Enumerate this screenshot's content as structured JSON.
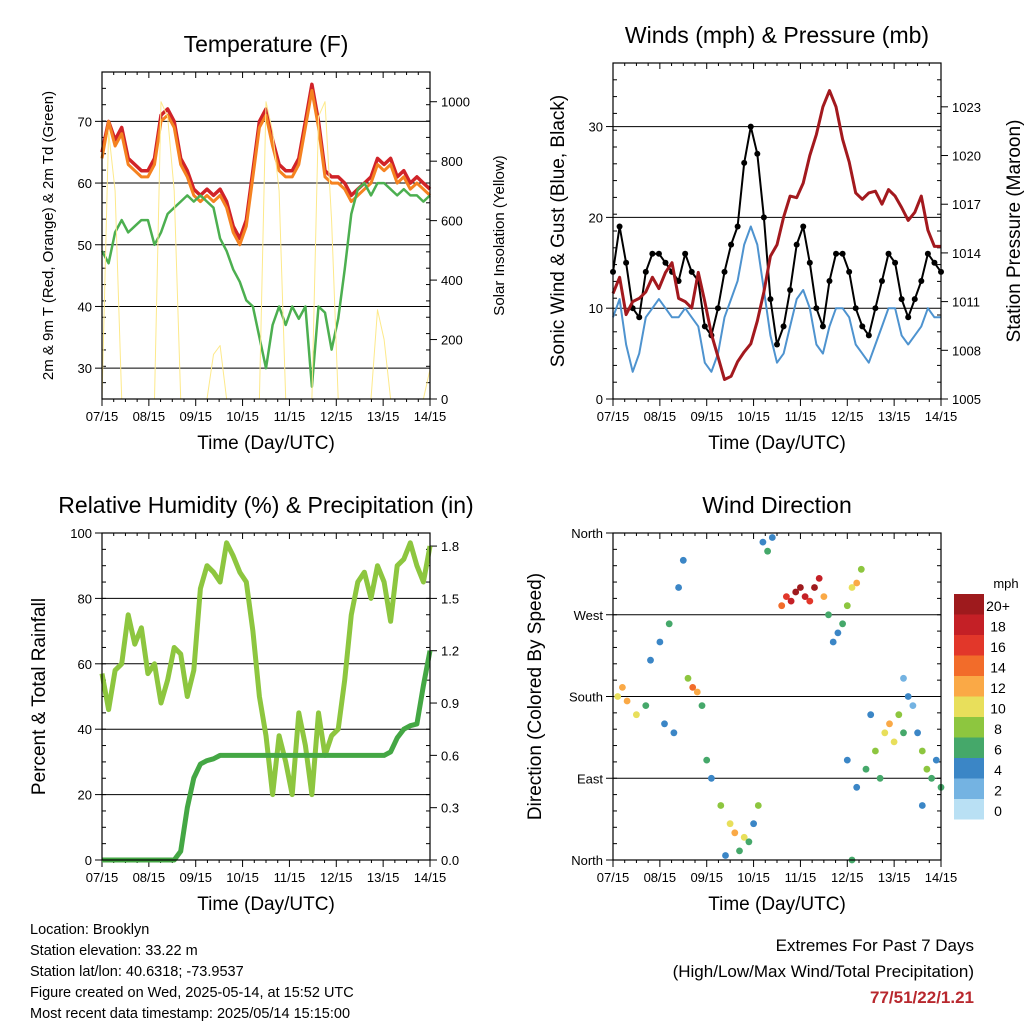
{
  "chart_data": [
    {
      "type": "line",
      "title": "Temperature (F)",
      "xlabel": "Time (Day/UTC)",
      "ylabel": "2m & 9m T (Red, Orange) & 2m Td (Green)",
      "ylabel_right": "Solar Insolation (Yellow)",
      "x_ticks": [
        "07/15",
        "08/15",
        "09/15",
        "10/15",
        "11/15",
        "12/15",
        "13/15",
        "14/15"
      ],
      "ylim": [
        25,
        78
      ],
      "y_ticks": [
        30,
        40,
        50,
        60,
        70
      ],
      "y2lim": [
        0,
        1100
      ],
      "y2_ticks": [
        0,
        200,
        400,
        600,
        800,
        1000
      ],
      "grid": true,
      "series": [
        {
          "color": "#d12328",
          "values": [
            65,
            70,
            67,
            69,
            64,
            63,
            62,
            62,
            64,
            71,
            72,
            70,
            64,
            62,
            59,
            58,
            59,
            58,
            59,
            57,
            53,
            51,
            54,
            62,
            70,
            72,
            67,
            63,
            62,
            62,
            64,
            70,
            76,
            70,
            62,
            61,
            61,
            60,
            58,
            59,
            60,
            61,
            64,
            63,
            64,
            61,
            62,
            60,
            61,
            60,
            59
          ]
        },
        {
          "color": "#f58220",
          "values": [
            64,
            70,
            66,
            68,
            63,
            62,
            61,
            61,
            63,
            70,
            71,
            69,
            63,
            61,
            58,
            57,
            58,
            57,
            58,
            56,
            52,
            50,
            53,
            61,
            69,
            71,
            66,
            62,
            61,
            61,
            63,
            69,
            75,
            69,
            61,
            60,
            60,
            59,
            57,
            58,
            59,
            60,
            63,
            62,
            63,
            60,
            61,
            59,
            60,
            59,
            58
          ]
        },
        {
          "color": "#4caf50",
          "values": [
            49,
            47,
            52,
            54,
            52,
            53,
            54,
            54,
            50,
            52,
            55,
            56,
            57,
            58,
            57,
            58,
            57,
            56,
            51,
            49,
            46,
            44,
            41,
            40,
            35,
            30,
            37,
            40,
            37,
            40,
            38,
            40,
            27,
            40,
            39,
            33,
            38,
            46,
            55,
            59,
            60,
            58,
            60,
            60,
            59,
            58,
            59,
            58,
            58,
            57,
            58
          ]
        },
        {
          "color": "#fde98a",
          "values": [
            0,
            900,
            700,
            0,
            0,
            0,
            0,
            0,
            0,
            1000,
            950,
            700,
            0,
            0,
            0,
            0,
            0,
            150,
            180,
            0,
            0,
            0,
            0,
            0,
            0,
            1000,
            900,
            700,
            0,
            0,
            0,
            0,
            0,
            950,
            1000,
            600,
            0,
            0,
            0,
            0,
            0,
            0,
            300,
            200,
            0,
            0,
            0,
            0,
            0,
            0,
            100
          ]
        }
      ]
    },
    {
      "type": "line",
      "title": "Winds (mph) & Pressure (mb)",
      "xlabel": "Time (Day/UTC)",
      "ylabel": "Sonic Wind & Gust (Blue, Black)",
      "ylabel_right": "Station Pressure (Maroon)",
      "x_ticks": [
        "07/15",
        "08/15",
        "09/15",
        "10/15",
        "11/15",
        "12/15",
        "13/15",
        "14/15"
      ],
      "ylim": [
        0,
        37
      ],
      "y_ticks": [
        0,
        10,
        20,
        30
      ],
      "y2lim": [
        1005,
        1025.7
      ],
      "y2_ticks": [
        1005,
        1008,
        1011,
        1014,
        1017,
        1020,
        1023
      ],
      "grid": true,
      "series": [
        {
          "color": "#000000",
          "values": [
            14,
            19,
            15,
            10,
            9,
            14,
            16,
            16,
            15,
            14,
            13,
            16,
            14,
            13,
            8,
            7,
            10,
            14,
            17,
            19,
            26,
            30,
            27,
            20,
            11,
            6,
            8,
            12,
            17,
            19,
            15,
            10,
            8,
            13,
            16,
            16,
            14,
            10,
            8,
            7,
            10,
            13,
            16,
            15,
            11,
            9,
            11,
            13,
            16,
            15,
            14
          ]
        },
        {
          "color": "#4e93cf",
          "values": [
            9,
            11,
            6,
            3,
            5,
            9,
            10,
            11,
            10,
            9,
            9,
            10,
            9,
            8,
            4,
            3,
            5,
            9,
            11,
            13,
            17,
            19,
            17,
            12,
            7,
            4,
            5,
            8,
            11,
            12,
            10,
            6,
            5,
            8,
            10,
            10,
            9,
            6,
            5,
            4,
            6,
            8,
            10,
            10,
            7,
            6,
            7,
            8,
            10,
            9,
            9
          ]
        },
        {
          "color": "#a3191e",
          "values": [
            1011.5,
            1012.5,
            1010.2,
            1011,
            1011.2,
            1011.6,
            1012.5,
            1011.8,
            1012.8,
            1013.4,
            1011.2,
            1011,
            1010.6,
            1012.8,
            1011,
            1009,
            1007.6,
            1006.2,
            1006.4,
            1007.3,
            1007.9,
            1008.4,
            1009.8,
            1011.6,
            1013.8,
            1014.5,
            1016.2,
            1017.5,
            1017.4,
            1018.3,
            1020,
            1021.3,
            1023,
            1024,
            1023,
            1021,
            1019.6,
            1017.7,
            1017.3,
            1017.7,
            1017.8,
            1017,
            1017.9,
            1017.5,
            1016.8,
            1016,
            1016.5,
            1017.5,
            1015.4,
            1014.4,
            1014.4
          ]
        }
      ]
    },
    {
      "type": "line",
      "title": "Relative Humidity (%) & Precipitation (in)",
      "xlabel": "Time (Day/UTC)",
      "ylabel": "Percent & Total Rainfall",
      "x_ticks": [
        "07/15",
        "08/15",
        "09/15",
        "10/15",
        "11/15",
        "12/15",
        "13/15",
        "14/15"
      ],
      "ylim": [
        0,
        100
      ],
      "y_ticks": [
        0,
        20,
        40,
        60,
        80,
        100
      ],
      "y2lim": [
        0,
        1.875
      ],
      "y2_ticks": [
        "0.0",
        "0.3",
        "0.6",
        "0.9",
        "1.2",
        "1.5",
        "1.8"
      ],
      "grid": true,
      "series": [
        {
          "color": "#8dc63f",
          "values": [
            57,
            46,
            58,
            60,
            75,
            66,
            71,
            57,
            60,
            48,
            55,
            65,
            63,
            50,
            58,
            83,
            90,
            88,
            85,
            97,
            93,
            88,
            85,
            70,
            50,
            38,
            20,
            38,
            30,
            20,
            45,
            35,
            20,
            45,
            32,
            38,
            40,
            55,
            75,
            85,
            88,
            80,
            90,
            85,
            73,
            90,
            92,
            97,
            90,
            85,
            96
          ]
        },
        {
          "color": "#44a744",
          "values": [
            0,
            0,
            0,
            0,
            0,
            0,
            0,
            0,
            0,
            0,
            0,
            0,
            0.05,
            0.3,
            0.47,
            0.55,
            0.57,
            0.58,
            0.6,
            0.6,
            0.6,
            0.6,
            0.6,
            0.6,
            0.6,
            0.6,
            0.6,
            0.6,
            0.6,
            0.6,
            0.6,
            0.6,
            0.6,
            0.6,
            0.6,
            0.6,
            0.6,
            0.6,
            0.6,
            0.6,
            0.6,
            0.6,
            0.6,
            0.6,
            0.62,
            0.7,
            0.75,
            0.77,
            0.78,
            1.0,
            1.2
          ]
        }
      ]
    },
    {
      "type": "scatter",
      "title": "Wind Direction",
      "xlabel": "Time (Day/UTC)",
      "ylabel": "Direction (Colored By Speed)",
      "x_ticks": [
        "07/15",
        "08/15",
        "09/15",
        "10/15",
        "11/15",
        "12/15",
        "13/15",
        "14/15"
      ],
      "ylim": [
        0,
        360
      ],
      "y_tick_labels": [
        "North",
        "East",
        "South",
        "West",
        "North"
      ],
      "grid": true,
      "legend": {
        "title": "mph",
        "placement": "right",
        "labels": [
          "20+",
          "18",
          "16",
          "14",
          "12",
          "10",
          "8",
          "6",
          "4",
          "2",
          "0"
        ],
        "colors": [
          "#9e1a1d",
          "#c42026",
          "#e2372a",
          "#f26c2a",
          "#faa946",
          "#e8df5b",
          "#8dc63f",
          "#45a86a",
          "#3b86c6",
          "#74b3e2",
          "#b9e0f4"
        ]
      },
      "series": [
        {
          "values": [
            [
              0.1,
              180,
              10
            ],
            [
              0.2,
              190,
              12
            ],
            [
              0.3,
              175,
              11
            ],
            [
              0.5,
              160,
              9
            ],
            [
              0.7,
              170,
              6
            ],
            [
              0.8,
              220,
              4
            ],
            [
              1,
              240,
              3
            ],
            [
              1.2,
              260,
              5
            ],
            [
              1.4,
              300,
              3
            ],
            [
              1.5,
              330,
              4
            ],
            [
              1.1,
              150,
              4
            ],
            [
              1.3,
              140,
              3
            ],
            [
              1.6,
              200,
              8
            ],
            [
              1.7,
              190,
              14
            ],
            [
              1.8,
              185,
              12
            ],
            [
              1.9,
              170,
              6
            ],
            [
              2,
              110,
              5
            ],
            [
              2.1,
              90,
              4
            ],
            [
              2.3,
              60,
              8
            ],
            [
              2.5,
              40,
              10
            ],
            [
              2.6,
              30,
              12
            ],
            [
              2.8,
              25,
              9
            ],
            [
              2.9,
              20,
              6
            ],
            [
              3,
              40,
              4
            ],
            [
              3.1,
              60,
              7
            ],
            [
              2.7,
              10,
              5
            ],
            [
              2.4,
              5,
              3
            ],
            [
              3.2,
              350,
              4
            ],
            [
              3.3,
              340,
              6
            ],
            [
              3.4,
              355,
              3
            ],
            [
              3.6,
              280,
              14
            ],
            [
              3.7,
              290,
              16
            ],
            [
              3.8,
              285,
              18
            ],
            [
              3.9,
              295,
              20
            ],
            [
              4,
              300,
              19
            ],
            [
              4.1,
              290,
              17
            ],
            [
              4.2,
              285,
              15
            ],
            [
              4.3,
              300,
              20
            ],
            [
              4.4,
              310,
              18
            ],
            [
              4.5,
              290,
              12
            ],
            [
              4.6,
              270,
              6
            ],
            [
              4.7,
              240,
              4
            ],
            [
              4.8,
              250,
              3
            ],
            [
              4.9,
              260,
              5
            ],
            [
              5,
              280,
              8
            ],
            [
              5.1,
              300,
              10
            ],
            [
              5.2,
              305,
              12
            ],
            [
              5.3,
              320,
              8
            ],
            [
              5.1,
              0,
              6
            ],
            [
              5,
              110,
              4
            ],
            [
              5.2,
              80,
              3
            ],
            [
              5.4,
              100,
              5
            ],
            [
              5.6,
              120,
              7
            ],
            [
              5.7,
              90,
              6
            ],
            [
              5.8,
              140,
              10
            ],
            [
              5.9,
              150,
              12
            ],
            [
              6,
              130,
              9
            ],
            [
              6.1,
              160,
              8
            ],
            [
              6.2,
              140,
              6
            ],
            [
              6.3,
              180,
              3
            ],
            [
              6.4,
              170,
              2
            ],
            [
              6.5,
              140,
              4
            ],
            [
              6.6,
              120,
              8
            ],
            [
              6.7,
              100,
              7
            ],
            [
              6.8,
              90,
              6
            ],
            [
              6.9,
              110,
              4
            ],
            [
              7,
              80,
              5
            ],
            [
              6.2,
              200,
              2
            ],
            [
              5.5,
              160,
              3
            ],
            [
              6.6,
              60,
              4
            ]
          ]
        }
      ]
    }
  ],
  "info": {
    "location": "Location: Brooklyn",
    "elevation": "Station elevation: 33.22 m",
    "latlon": "Station lat/lon: 40.6318; -73.9537",
    "created": "Figure created on Wed, 2025-05-14, at 15:52 UTC",
    "recent": "Most recent data timestamp: 2025/05/14 15:15:00"
  },
  "extremes": {
    "title": "Extremes For Past 7 Days",
    "subtitle": "(High/Low/Max Wind/Total Precipitation)",
    "values": "77/51/22/1.21"
  }
}
